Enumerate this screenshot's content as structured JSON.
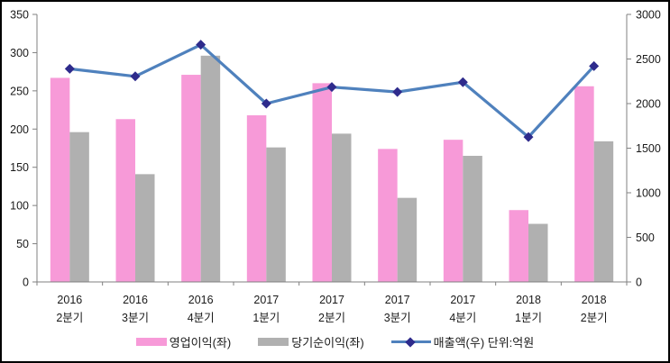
{
  "chart_data": {
    "type": "bar+line combo",
    "title": "",
    "categories": [
      "2016 2분기",
      "2016 3분기",
      "2016 4분기",
      "2017 1분기",
      "2017 2분기",
      "2017 3분기",
      "2017 4분기",
      "2018 1분기",
      "2018 2분기"
    ],
    "series": [
      {
        "key": "operating-profit",
        "name": "영업이익(좌)",
        "type": "bar",
        "axis": "left",
        "color": "#F79AD8",
        "values": [
          267,
          213,
          271,
          218,
          260,
          174,
          186,
          94,
          256
        ]
      },
      {
        "key": "net-profit",
        "name": "당기순이익(좌)",
        "type": "bar",
        "axis": "left",
        "color": "#B0B0B0",
        "values": [
          196,
          141,
          296,
          176,
          194,
          110,
          165,
          76,
          184
        ]
      },
      {
        "key": "revenue",
        "name": "매출액(우) 단위:억원",
        "type": "line",
        "axis": "right",
        "color": "#4F81BD",
        "marker": "diamond",
        "marker_color": "#2E2B8C",
        "values": [
          2390,
          2305,
          2660,
          2000,
          2185,
          2130,
          2240,
          1625,
          2420
        ]
      }
    ],
    "left_axis": {
      "min": 0,
      "max": 350,
      "step": 50,
      "tick_labels": [
        "0",
        "50",
        "100",
        "150",
        "200",
        "250",
        "300",
        "350"
      ]
    },
    "right_axis": {
      "min": 0,
      "max": 3000,
      "step": 500,
      "tick_labels": [
        "0",
        "500",
        "1000",
        "1500",
        "2000",
        "2500",
        "3000"
      ]
    },
    "grid": false,
    "legend_position": "bottom",
    "axis_color": "#808080"
  }
}
